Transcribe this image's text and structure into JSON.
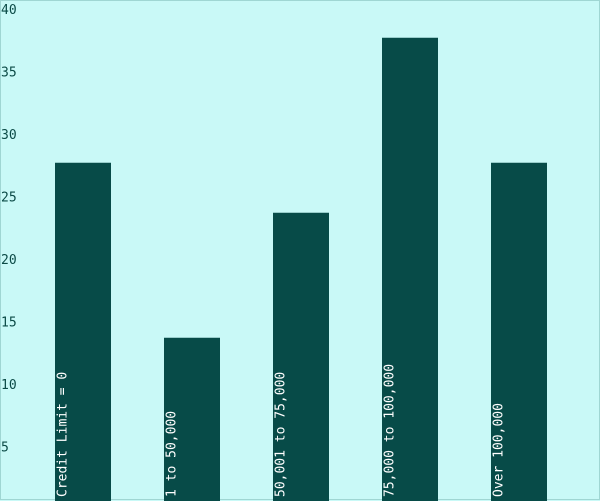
{
  "chart_data": {
    "type": "bar",
    "categories": [
      "Credit Limit = 0",
      "1 to 50,000",
      "50,001 to 75,000",
      "75,000 to 100,000",
      "Over 100,000"
    ],
    "values": [
      27.7,
      13.7,
      23.7,
      37.7,
      27.7
    ],
    "ylim": [
      0,
      40
    ],
    "yticks": [
      5,
      10,
      15,
      20,
      25,
      30,
      35,
      40
    ],
    "grid": false,
    "colors": {
      "bar": "#074b48",
      "background": "#c9f9f7",
      "label": "#ffffff",
      "tick": "#0b4a46"
    }
  }
}
